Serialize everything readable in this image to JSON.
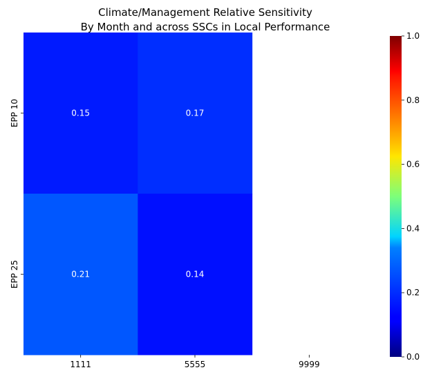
{
  "chart_data": {
    "type": "heatmap",
    "title_lines": [
      "Climate/Management Relative Sensitivity",
      "By Month and across SSCs in Local Performance"
    ],
    "xlabel": "",
    "ylabel": "",
    "x_categories": [
      "1111",
      "5555",
      "9999"
    ],
    "y_categories": [
      "EPP 10",
      "EPP 25"
    ],
    "values": [
      [
        0.15,
        0.17,
        null
      ],
      [
        0.21,
        0.14,
        null
      ]
    ],
    "cell_labels": [
      [
        "0.15",
        "0.17",
        ""
      ],
      [
        "0.21",
        "0.14",
        ""
      ]
    ],
    "colormap": "jet",
    "vmin": 0.0,
    "vmax": 1.0,
    "colorbar_ticks": [
      "0.0",
      "0.2",
      "0.4",
      "0.6",
      "0.8",
      "1.0"
    ],
    "grid": false
  }
}
